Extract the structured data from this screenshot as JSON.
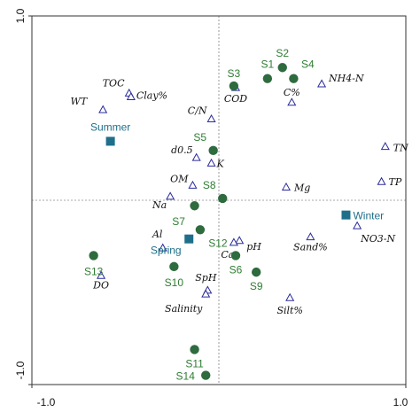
{
  "chart_data": {
    "type": "scatter",
    "title": "",
    "xlabel": "",
    "ylabel": "",
    "xlim": [
      -1.0,
      1.0
    ],
    "ylim": [
      -1.0,
      1.0
    ],
    "x_ticks": [
      "-1.0",
      "1.0"
    ],
    "y_ticks": [
      "1.0",
      "-1.0"
    ],
    "colors": {
      "sites": "#2e6b3e",
      "seasons": "#1f6f8b",
      "env": "#2b2b9a",
      "axes": "#333333"
    },
    "env_points": [
      {
        "name": "TOC",
        "x": -0.48,
        "y": 0.58
      },
      {
        "name": "WT",
        "x": -0.62,
        "y": 0.49
      },
      {
        "name": "Clay%",
        "x": -0.47,
        "y": 0.56
      },
      {
        "name": "C/N",
        "x": -0.04,
        "y": 0.44
      },
      {
        "name": "COD",
        "x": 0.09,
        "y": 0.61
      },
      {
        "name": "C%",
        "x": 0.39,
        "y": 0.53
      },
      {
        "name": "NH4-N",
        "x": 0.55,
        "y": 0.63
      },
      {
        "name": "d0.5",
        "x": -0.12,
        "y": 0.23
      },
      {
        "name": "K",
        "x": -0.04,
        "y": 0.2
      },
      {
        "name": "OM",
        "x": -0.14,
        "y": 0.08
      },
      {
        "name": "Na",
        "x": -0.26,
        "y": 0.02
      },
      {
        "name": "Mg",
        "x": 0.36,
        "y": 0.07
      },
      {
        "name": "TN",
        "x": 0.89,
        "y": 0.29
      },
      {
        "name": "TP",
        "x": 0.87,
        "y": 0.1
      },
      {
        "name": "NO3-N",
        "x": 0.74,
        "y": -0.14
      },
      {
        "name": "Sand%",
        "x": 0.49,
        "y": -0.2
      },
      {
        "name": "Al",
        "x": -0.3,
        "y": -0.26
      },
      {
        "name": "pH",
        "x": 0.11,
        "y": -0.22
      },
      {
        "name": "Ca",
        "x": 0.08,
        "y": -0.23
      },
      {
        "name": "SpH",
        "x": -0.06,
        "y": -0.49
      },
      {
        "name": "Salinity",
        "x": -0.07,
        "y": -0.51
      },
      {
        "name": "Silt%",
        "x": 0.38,
        "y": -0.53
      },
      {
        "name": "DO",
        "x": -0.63,
        "y": -0.41
      }
    ],
    "site_points": [
      {
        "name": "S1",
        "x": 0.26,
        "y": 0.66
      },
      {
        "name": "S2",
        "x": 0.34,
        "y": 0.72
      },
      {
        "name": "S4",
        "x": 0.4,
        "y": 0.66
      },
      {
        "name": "S3",
        "x": 0.08,
        "y": 0.62
      },
      {
        "name": "S5",
        "x": -0.03,
        "y": 0.27
      },
      {
        "name": "S8",
        "x": 0.02,
        "y": 0.01
      },
      {
        "name": "S7",
        "x": -0.13,
        "y": -0.03
      },
      {
        "name": "S12",
        "x": -0.1,
        "y": -0.16
      },
      {
        "name": "S6",
        "x": 0.09,
        "y": -0.3
      },
      {
        "name": "S9",
        "x": 0.2,
        "y": -0.39
      },
      {
        "name": "S10",
        "x": -0.24,
        "y": -0.36
      },
      {
        "name": "S13",
        "x": -0.67,
        "y": -0.3
      },
      {
        "name": "S11",
        "x": -0.13,
        "y": -0.81
      },
      {
        "name": "S14",
        "x": -0.07,
        "y": -0.95
      }
    ],
    "season_points": [
      {
        "name": "Summer",
        "x": -0.58,
        "y": 0.32
      },
      {
        "name": "Spring",
        "x": -0.16,
        "y": -0.21
      },
      {
        "name": "Winter",
        "x": 0.68,
        "y": -0.08
      }
    ]
  }
}
